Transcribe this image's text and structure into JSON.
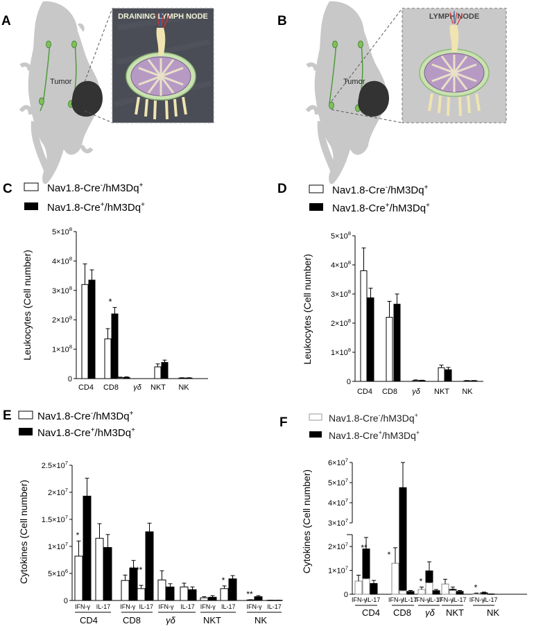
{
  "panels": {
    "A": {
      "letter": "A",
      "inset_title": "DRAINING LYMPH NODE",
      "tumor_label": "Tumor"
    },
    "B": {
      "letter": "B",
      "inset_title": "LYMPH NODE",
      "tumor_label": "Tumor"
    }
  },
  "legend": {
    "neg_main": "Nav1.8-Cre",
    "neg_sup": "-",
    "neg_tail": "/hM3Dq",
    "neg_sup2": "+",
    "pos_main": "Nav1.8-Cre",
    "pos_sup": "+",
    "pos_tail": "/hM3Dq",
    "pos_sup2": "+"
  },
  "chart_data": [
    {
      "id": "C",
      "type": "bar",
      "ylabel": "Leukocytes (Cell number)",
      "categories": [
        "CD4",
        "CD8",
        "γδ",
        "NKT",
        "NK"
      ],
      "ylim": [
        0,
        500000000
      ],
      "yticks": [
        {
          "v": 0,
          "m": "0",
          "e": ""
        },
        {
          "v": 100000000,
          "m": "1×10",
          "e": "8"
        },
        {
          "v": 200000000,
          "m": "2×10",
          "e": "8"
        },
        {
          "v": 300000000,
          "m": "3×10",
          "e": "8"
        },
        {
          "v": 400000000,
          "m": "4×10",
          "e": "8"
        },
        {
          "v": 500000000,
          "m": "5×10",
          "e": "8"
        }
      ],
      "series": [
        {
          "values": [
            320000000,
            135000000,
            3000000,
            40000000,
            2000000
          ],
          "errors": [
            70000000,
            35000000,
            2000000,
            10000000,
            1000000
          ]
        },
        {
          "values": [
            335000000,
            220000000,
            4000000,
            55000000,
            2000000
          ],
          "errors": [
            35000000,
            22000000,
            2000000,
            8000000,
            1000000
          ]
        }
      ],
      "annotations": [
        {
          "category": 1,
          "series": 1,
          "text": "*"
        }
      ]
    },
    {
      "id": "D",
      "type": "bar",
      "ylabel": "Leukocytes (Cell number)",
      "categories": [
        "CD4",
        "CD8",
        "γδ",
        "NKT",
        "NK"
      ],
      "ylim": [
        0,
        500000000
      ],
      "yticks": [
        {
          "v": 0,
          "m": "0",
          "e": ""
        },
        {
          "v": 100000000,
          "m": "1×10",
          "e": "8"
        },
        {
          "v": 200000000,
          "m": "2×10",
          "e": "8"
        },
        {
          "v": 300000000,
          "m": "3×10",
          "e": "8"
        },
        {
          "v": 400000000,
          "m": "4×10",
          "e": "8"
        },
        {
          "v": 500000000,
          "m": "5×10",
          "e": "8"
        }
      ],
      "series": [
        {
          "values": [
            380000000,
            220000000,
            3000000,
            47000000,
            2000000
          ],
          "errors": [
            78000000,
            55000000,
            2000000,
            9000000,
            1000000
          ]
        },
        {
          "values": [
            287000000,
            265000000,
            3000000,
            40000000,
            2000000
          ],
          "errors": [
            33000000,
            35000000,
            1000000,
            8000000,
            1000000
          ]
        }
      ],
      "annotations": []
    },
    {
      "id": "E",
      "type": "bar",
      "ylabel": "Cytokines (Cell number)",
      "groups": [
        "CD4",
        "CD8",
        "γδ",
        "NKT",
        "NK"
      ],
      "subcategories": [
        "IFN-γ",
        "IL-17"
      ],
      "ylim": [
        0,
        25000000
      ],
      "yticks": [
        {
          "v": 0,
          "m": "0",
          "e": ""
        },
        {
          "v": 5000000,
          "m": "5×10",
          "e": "6"
        },
        {
          "v": 10000000,
          "m": "1×10",
          "e": "7"
        },
        {
          "v": 15000000,
          "m": "1.5×10",
          "e": "7"
        },
        {
          "v": 20000000,
          "m": "2×10",
          "e": "7"
        },
        {
          "v": 25000000,
          "m": "2.5×10",
          "e": "7"
        }
      ],
      "series": [
        {
          "values": [
            8200000,
            11500000,
            3700000,
            2200000,
            3800000,
            2500000,
            500000,
            2200000,
            100000,
            50000
          ],
          "errors": [
            2800000,
            2700000,
            1000000,
            600000,
            1700000,
            700000,
            200000,
            500000,
            50000,
            20000
          ]
        },
        {
          "values": [
            19300000,
            9800000,
            6000000,
            12700000,
            2500000,
            2000000,
            600000,
            4000000,
            700000,
            50000
          ],
          "errors": [
            3300000,
            2400000,
            1400000,
            1600000,
            600000,
            500000,
            300000,
            600000,
            200000,
            20000
          ]
        }
      ],
      "annotations": [
        {
          "bar": 0,
          "series": 0,
          "text": "*"
        },
        {
          "bar": 3,
          "series": 1,
          "text": "****"
        },
        {
          "bar": 7,
          "series": 0,
          "text": "*"
        },
        {
          "bar": 8,
          "series": 0,
          "text": "**"
        }
      ]
    },
    {
      "id": "F",
      "type": "bar",
      "ylabel": "Cytokines (Cell number)",
      "groups": [
        "CD4",
        "CD8",
        "γδ",
        "NKT",
        "NK"
      ],
      "subcategories": [
        "IFN-γ",
        "IL-17"
      ],
      "ylim": [
        0,
        60000000
      ],
      "axis_break": [
        25000000,
        30000000
      ],
      "yticks": [
        {
          "v": 0,
          "m": "0",
          "e": ""
        },
        {
          "v": 10000000,
          "m": "1×10",
          "e": "7"
        },
        {
          "v": 20000000,
          "m": "2×10",
          "e": "7"
        },
        {
          "v": 30000000,
          "m": "3×10",
          "e": "7"
        },
        {
          "v": 40000000,
          "m": "4×10",
          "e": "7"
        },
        {
          "v": 50000000,
          "m": "5×10",
          "e": "7"
        },
        {
          "v": 60000000,
          "m": "6×10",
          "e": "7"
        }
      ],
      "series": [
        {
          "values": [
            5500000,
            6500000,
            13000000,
            1500000,
            2000000,
            4800000,
            4300000,
            1600000,
            300000,
            100000
          ],
          "errors": [
            2500000,
            1500000,
            6500000,
            500000,
            1000000,
            2000000,
            2000000,
            500000,
            200000,
            50000
          ]
        },
        {
          "values": [
            19000000,
            4500000,
            47500000,
            1200000,
            9800000,
            1500000,
            2000000,
            1200000,
            600000,
            100000
          ],
          "errors": [
            4800000,
            1300000,
            12500000,
            400000,
            3800000,
            500000,
            1000000,
            400000,
            300000,
            50000
          ]
        }
      ],
      "annotations": [
        {
          "bar": 0,
          "series": 1,
          "text": "**"
        },
        {
          "bar": 2,
          "series": 0,
          "text": "*"
        },
        {
          "bar": 4,
          "series": 0,
          "text": "*"
        },
        {
          "bar": 8,
          "series": 0,
          "text": "*"
        }
      ]
    }
  ]
}
